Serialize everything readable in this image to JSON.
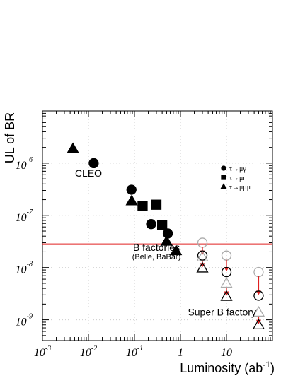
{
  "chart_data": {
    "type": "scatter",
    "title": "",
    "xlabel": "Luminosity (ab",
    "xlabel_sup": "-1",
    "xlabel_close": ")",
    "ylabel": "UL of BR",
    "xscale": "log",
    "yscale": "log",
    "xlim": [
      0.001,
      100
    ],
    "ylim": [
      4e-10,
      1e-05
    ],
    "grid": true,
    "legend_position": "right",
    "colors": {
      "observed": "#000000",
      "projected": "#aaaaaa",
      "arrow": "#e02020",
      "threshold_line": "#e02020"
    },
    "x_ticks": [
      {
        "value": 0.001,
        "base": "10",
        "exp": "-3"
      },
      {
        "value": 0.01,
        "base": "10",
        "exp": "-2"
      },
      {
        "value": 0.1,
        "base": "10",
        "exp": "-1"
      },
      {
        "value": 1,
        "base": "1",
        "exp": ""
      },
      {
        "value": 10,
        "base": "10",
        "exp": ""
      }
    ],
    "y_ticks": [
      {
        "value": 1e-06,
        "base": "10",
        "exp": "-6"
      },
      {
        "value": 1e-07,
        "base": "10",
        "exp": "-7"
      },
      {
        "value": 1e-08,
        "base": "10",
        "exp": "-8"
      },
      {
        "value": 1e-09,
        "base": "10",
        "exp": "-9"
      }
    ],
    "series": [
      {
        "name": "τ→μγ",
        "marker": "circle",
        "points": [
          {
            "x": 0.013,
            "y": 1e-06
          },
          {
            "x": 0.086,
            "y": 3.1e-07
          },
          {
            "x": 0.23,
            "y": 6.8e-08
          },
          {
            "x": 0.53,
            "y": 4.5e-08
          }
        ]
      },
      {
        "name": "τ→μη",
        "marker": "square",
        "points": [
          {
            "x": 0.15,
            "y": 1.5e-07
          },
          {
            "x": 0.3,
            "y": 1.6e-07
          },
          {
            "x": 0.4,
            "y": 6.5e-08
          }
        ]
      },
      {
        "name": "τ→μμμ",
        "marker": "triangle",
        "points": [
          {
            "x": 0.0046,
            "y": 1.9e-06
          },
          {
            "x": 0.087,
            "y": 1.9e-07
          },
          {
            "x": 0.5,
            "y": 3.2e-08
          },
          {
            "x": 0.8,
            "y": 2.1e-08
          }
        ]
      }
    ],
    "projections": [
      {
        "marker": "circle",
        "x": 3,
        "y_from": 3e-08,
        "y_to": 1.7e-08
      },
      {
        "marker": "triangle",
        "x": 3,
        "y_from": 1.6e-08,
        "y_to": 9.8e-09
      },
      {
        "marker": "circle",
        "x": 10,
        "y_from": 1.7e-08,
        "y_to": 8.2e-09
      },
      {
        "marker": "triangle",
        "x": 10,
        "y_from": 5e-09,
        "y_to": 2.8e-09
      },
      {
        "marker": "circle",
        "x": 50,
        "y_from": 8.2e-09,
        "y_to": 2.9e-09
      },
      {
        "marker": "triangle",
        "x": 50,
        "y_from": 1.4e-09,
        "y_to": 8e-10
      }
    ],
    "threshold": {
      "y": 2.8e-08
    },
    "annotations": [
      {
        "text": "CLEO",
        "x": 0.01,
        "y": 5.5e-07,
        "size": 14,
        "anchor": "middle"
      },
      {
        "text": "B factories",
        "x": 0.3,
        "y": 2.1e-08,
        "size": 14,
        "anchor": "middle"
      },
      {
        "text": "(Belle, BaBar)",
        "x": 0.3,
        "y": 1.45e-08,
        "size": 11,
        "anchor": "middle"
      },
      {
        "text": "Super B factory",
        "x": 8,
        "y": 1.2e-09,
        "size": 14,
        "anchor": "middle"
      }
    ]
  }
}
